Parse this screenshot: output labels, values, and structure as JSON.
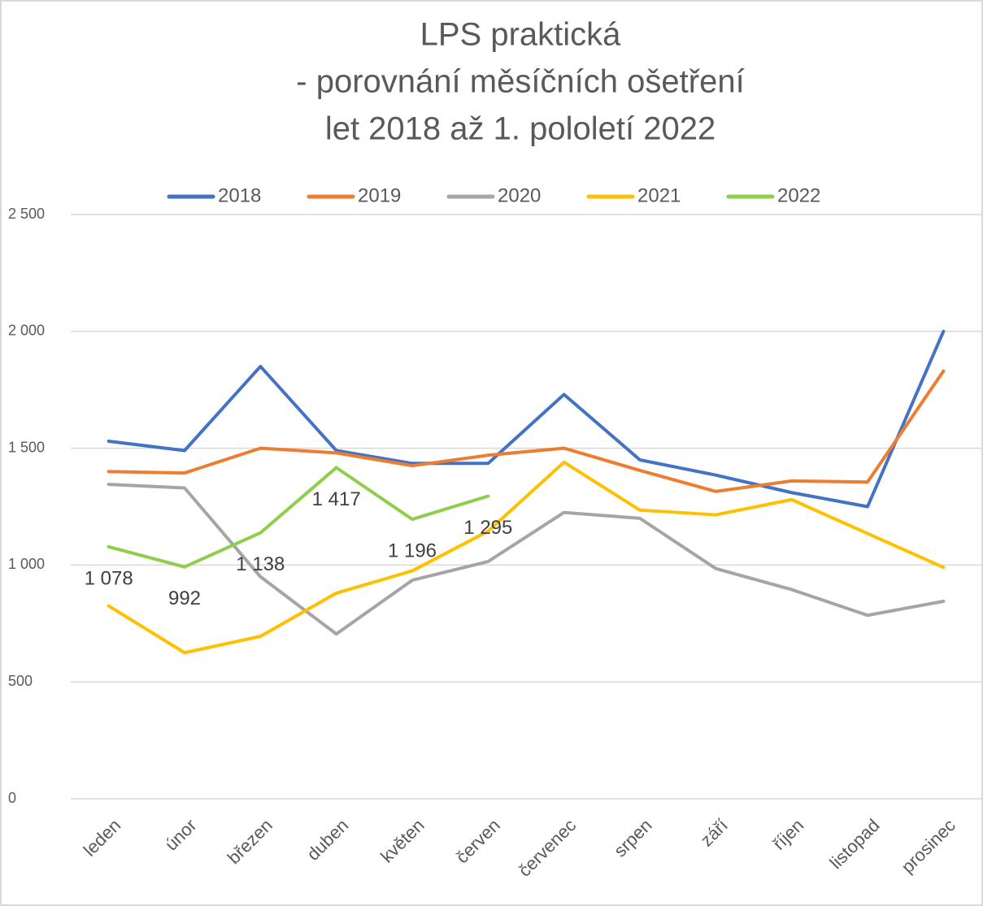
{
  "chart_data": {
    "type": "line",
    "title": [
      "LPS praktická",
      "- porovnání měsíčních ošetření",
      "let 2018 až 1. pololetí 2022"
    ],
    "categories": [
      "leden",
      "únor",
      "březen",
      "duben",
      "květen",
      "červen",
      "červenec",
      "srpen",
      "září",
      "říjen",
      "listopad",
      "prosinec"
    ],
    "series": [
      {
        "name": "2018",
        "color": "#4472c4",
        "values": [
          1530,
          1490,
          1850,
          1490,
          1435,
          1435,
          1730,
          1450,
          1385,
          1310,
          1250,
          2000
        ]
      },
      {
        "name": "2019",
        "color": "#ed7d31",
        "values": [
          1400,
          1394,
          1500,
          1480,
          1425,
          1470,
          1500,
          1405,
          1315,
          1360,
          1355,
          1830
        ]
      },
      {
        "name": "2020",
        "color": "#a5a5a5",
        "values": [
          1345,
          1330,
          950,
          705,
          935,
          1015,
          1225,
          1200,
          985,
          895,
          785,
          845
        ]
      },
      {
        "name": "2021",
        "color": "#ffc000",
        "values": [
          825,
          625,
          695,
          880,
          975,
          1145,
          1440,
          1235,
          1215,
          1280,
          1135,
          990
        ]
      },
      {
        "name": "2022",
        "color": "#8fce4a",
        "values": [
          1078,
          992,
          1138,
          1417,
          1196,
          1295,
          null,
          null,
          null,
          null,
          null,
          null
        ],
        "value_labels": [
          "1 078",
          "992",
          "1 138",
          "1 417",
          "1 196",
          "1 295",
          null,
          null,
          null,
          null,
          null,
          null
        ]
      }
    ],
    "ylim": [
      0,
      2500
    ],
    "yticks": [
      0,
      500,
      {
        "value": 1000,
        "label": "1 000"
      },
      {
        "value": 1500,
        "label": "1 500"
      },
      {
        "value": 2000,
        "label": "2 000"
      },
      {
        "value": 2500,
        "label": "2 500"
      }
    ],
    "grid": true,
    "legend": "top"
  }
}
